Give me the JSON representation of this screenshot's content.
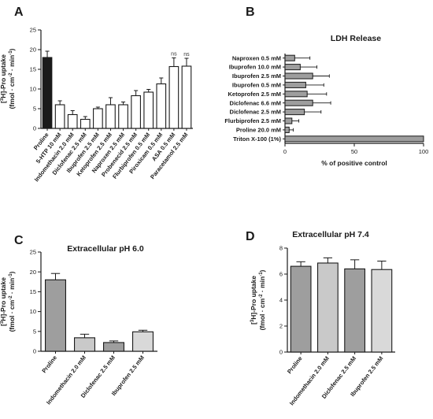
{
  "chart_data": [
    {
      "panel": "A",
      "type": "bar",
      "title": "",
      "ylabel": "[3H]-Pro uptake (fmol · cm-2 · min-1)",
      "ylim": [
        0,
        25
      ],
      "yticks": [
        0,
        5,
        10,
        15,
        20,
        25
      ],
      "categories": [
        "Proline",
        "5-HTP 10 mM",
        "Indomethacin 2.0 mM",
        "Diclofenac 2.5 mM",
        "Ibuprofen 2.5 mM",
        "Ketoprofen 2.5 mM",
        "Naproxen 2.5 mM",
        "Probenecid 2.5 mM",
        "Flurbiprofen 0.5 mM",
        "Piroxicam 0.5 mM",
        "ASA 0.5 mM",
        "Paracetamol 2.5 mM"
      ],
      "values": [
        18.0,
        6.0,
        3.5,
        2.3,
        5.0,
        6.0,
        6.0,
        8.3,
        9.2,
        11.3,
        15.7,
        15.8
      ],
      "errors": [
        1.6,
        1.0,
        1.0,
        0.7,
        0.4,
        1.8,
        0.7,
        1.3,
        0.7,
        1.5,
        2.2,
        2.0
      ],
      "colors": [
        "#1a1a1a",
        "#ffffff",
        "#ffffff",
        "#ffffff",
        "#ffffff",
        "#ffffff",
        "#ffffff",
        "#ffffff",
        "#ffffff",
        "#ffffff",
        "#ffffff",
        "#ffffff"
      ],
      "annotations": [
        "",
        "",
        "",
        "",
        "",
        "",
        "",
        "",
        "",
        "",
        "ns",
        "ns"
      ]
    },
    {
      "panel": "B",
      "type": "bar",
      "orientation": "horizontal",
      "title": "LDH Release",
      "xlabel": "% of positive control",
      "xlim": [
        0,
        100
      ],
      "xticks": [
        0,
        50,
        100
      ],
      "categories": [
        "Naproxen 0.5 mM",
        "Ibuprofen 10.0 mM",
        "Ibuprofen 2.5 mM",
        "Ibuprofen 0.5 mM",
        "Ketoprofen 2.5 mM",
        "Diclofenac 6.6 mM",
        "Diclofenac 2.5 mM",
        "Flurbiprofen 2.5 mM",
        "Proline 20.0 mM",
        "Triton X-100 (1%)"
      ],
      "values": [
        7,
        11,
        20,
        15,
        16,
        20,
        14,
        5,
        3,
        100
      ],
      "errors": [
        11,
        12,
        12,
        13,
        14,
        13,
        12,
        5,
        3,
        0
      ],
      "colors": [
        "#9e9e9e",
        "#9e9e9e",
        "#9e9e9e",
        "#9e9e9e",
        "#9e9e9e",
        "#9e9e9e",
        "#9e9e9e",
        "#9e9e9e",
        "#9e9e9e",
        "#9e9e9e"
      ]
    },
    {
      "panel": "C",
      "type": "bar",
      "title": "Extracellular pH 6.0",
      "ylabel": "[3H]-Pro uptake (fmol · cm-2 · min-1)",
      "ylim": [
        0,
        25
      ],
      "yticks": [
        0,
        5,
        10,
        15,
        20,
        25
      ],
      "categories": [
        "Proline",
        "Indomethacin 2.0 mM",
        "Diclofenac 2.5 mM",
        "Ibuprofen 2.5 mM"
      ],
      "values": [
        18.0,
        3.4,
        2.2,
        4.9
      ],
      "errors": [
        1.6,
        0.9,
        0.4,
        0.4
      ],
      "colors": [
        "#9e9e9e",
        "#c9c9c9",
        "#9e9e9e",
        "#d9d9d9"
      ]
    },
    {
      "panel": "D",
      "type": "bar",
      "title": "Extracellular pH 7.4",
      "ylabel": "[3H]-Pro uptake (fmol · cm-2 · min-1)",
      "ylim": [
        0,
        8
      ],
      "yticks": [
        0,
        2,
        4,
        6,
        8
      ],
      "categories": [
        "Proline",
        "Indomethacin 2.0 mM",
        "Diclofenac 2.5 mM",
        "Ibuprofen 2.5 mM"
      ],
      "values": [
        6.6,
        6.85,
        6.4,
        6.35
      ],
      "errors": [
        0.35,
        0.4,
        0.7,
        0.65
      ],
      "colors": [
        "#9e9e9e",
        "#c9c9c9",
        "#9e9e9e",
        "#d9d9d9"
      ]
    }
  ]
}
